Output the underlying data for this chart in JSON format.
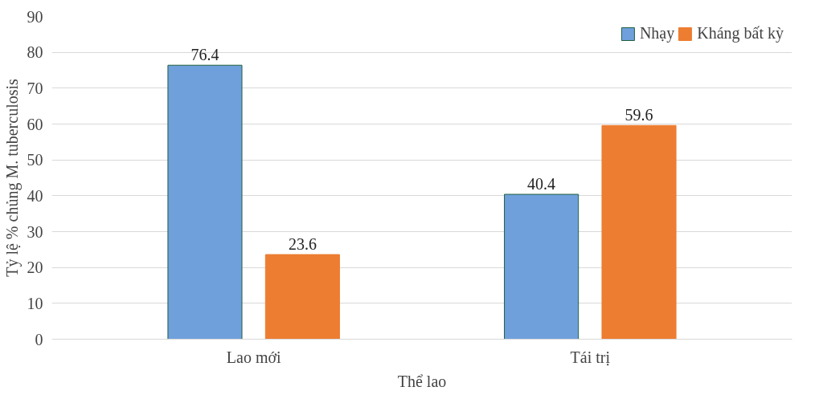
{
  "chart_data": {
    "type": "bar",
    "categories": [
      "Lao mới",
      "Tái trị"
    ],
    "series": [
      {
        "name": "Nhạy",
        "color": "#6fa0dc",
        "values": [
          76.4,
          40.4
        ]
      },
      {
        "name": "Kháng bất kỳ",
        "color": "#ed7d31",
        "values": [
          23.6,
          59.6
        ]
      }
    ],
    "xlabel": "Thể lao",
    "ylabel": "Tỷ lệ % chủng M. tuberculosis",
    "ylim": [
      0,
      90
    ],
    "yticks": [
      0,
      10,
      20,
      30,
      40,
      50,
      60,
      70,
      80,
      90
    ],
    "grid": "y",
    "legend": "top right",
    "data_labels": true
  }
}
